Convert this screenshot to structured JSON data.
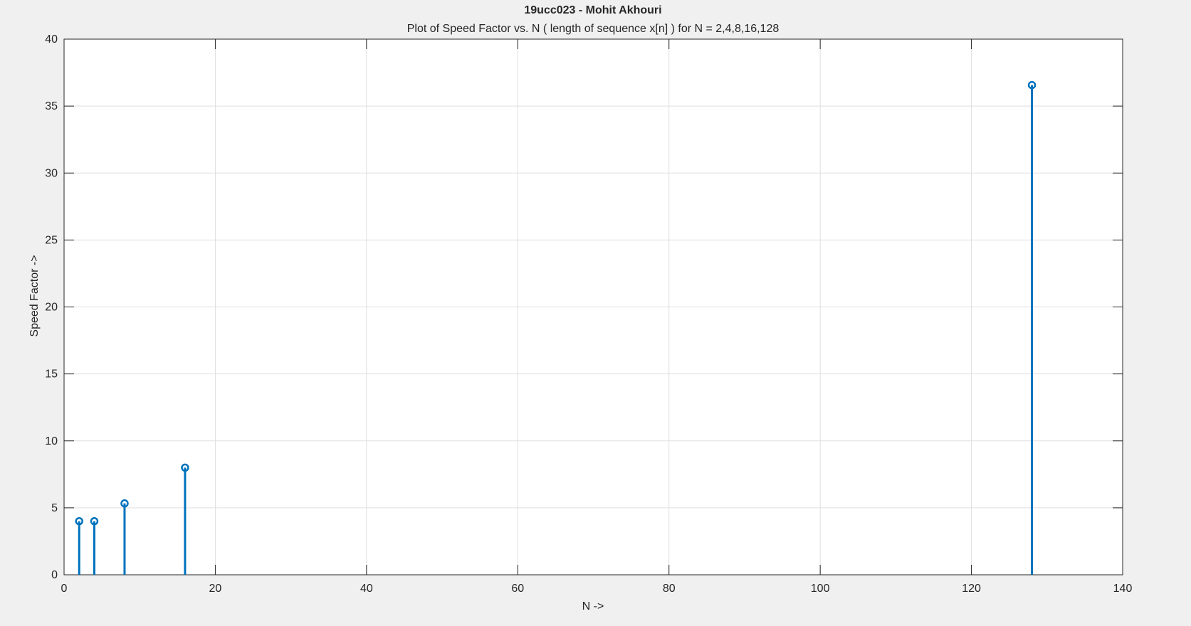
{
  "figure": {
    "background": "#f0f0f0",
    "axes_background": "#ffffff",
    "grid_color": "#dfdfdf",
    "axis_color": "#262626"
  },
  "chart_data": {
    "type": "scatter",
    "style": "stem",
    "title": "19ucc023 - Mohit Akhouri",
    "subtitle": "Plot of Speed Factor vs. N ( length of sequence x[n] ) for N = 2,4,8,16,128",
    "xlabel": "N ->",
    "ylabel": "Speed Factor ->",
    "xlim": [
      0,
      140
    ],
    "ylim": [
      0,
      40
    ],
    "xticks": [
      0,
      20,
      40,
      60,
      80,
      100,
      120,
      140
    ],
    "yticks": [
      0,
      5,
      10,
      15,
      20,
      25,
      30,
      35,
      40
    ],
    "grid": true,
    "legend": "none",
    "series": [
      {
        "color": "#0072bd",
        "marker": "circle",
        "x": [
          2,
          4,
          8,
          16,
          128
        ],
        "y": [
          4,
          4,
          5.33,
          8,
          36.57
        ]
      }
    ]
  }
}
